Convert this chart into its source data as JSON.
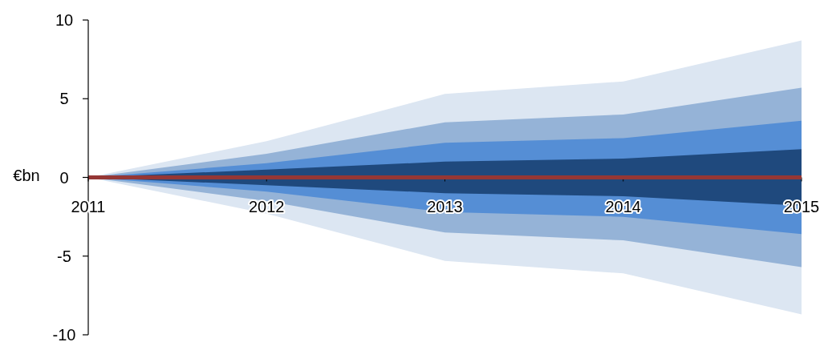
{
  "chart_data": {
    "type": "line",
    "ylabel": "€bn",
    "categories": [
      "2011",
      "2012",
      "2013",
      "2014",
      "2015"
    ],
    "series": [
      {
        "color": "#dce6f2",
        "values": [
          null,
          null,
          null,
          null,
          null
        ],
        "lower": [
          0,
          -2.3,
          -5.3,
          -6.1,
          -8.7
        ],
        "upper": [
          0,
          2.3,
          5.3,
          6.1,
          8.7
        ]
      },
      {
        "color": "#95b3d7",
        "values": [
          null,
          null,
          null,
          null,
          null
        ],
        "lower": [
          0,
          -1.5,
          -3.5,
          -4.0,
          -5.7
        ],
        "upper": [
          0,
          1.5,
          3.5,
          4.0,
          5.7
        ]
      },
      {
        "color": "#558ed5",
        "values": [
          null,
          null,
          null,
          null,
          null
        ],
        "lower": [
          0,
          -0.9,
          -2.2,
          -2.5,
          -3.6
        ],
        "upper": [
          0,
          0.9,
          2.2,
          2.5,
          3.6
        ]
      },
      {
        "color": "#1f497d",
        "values": [
          null,
          null,
          null,
          null,
          null
        ],
        "lower": [
          0,
          -0.5,
          -1.0,
          -1.2,
          -1.8
        ],
        "upper": [
          0,
          0.5,
          1.0,
          1.2,
          1.8
        ]
      },
      {
        "color": "#953735",
        "values": [
          0,
          0,
          0,
          0,
          0
        ]
      }
    ],
    "ylim": [
      -10,
      10
    ],
    "yticks": [
      -10,
      -5,
      0,
      5,
      10
    ],
    "marker": "none",
    "line_style": "solid"
  }
}
